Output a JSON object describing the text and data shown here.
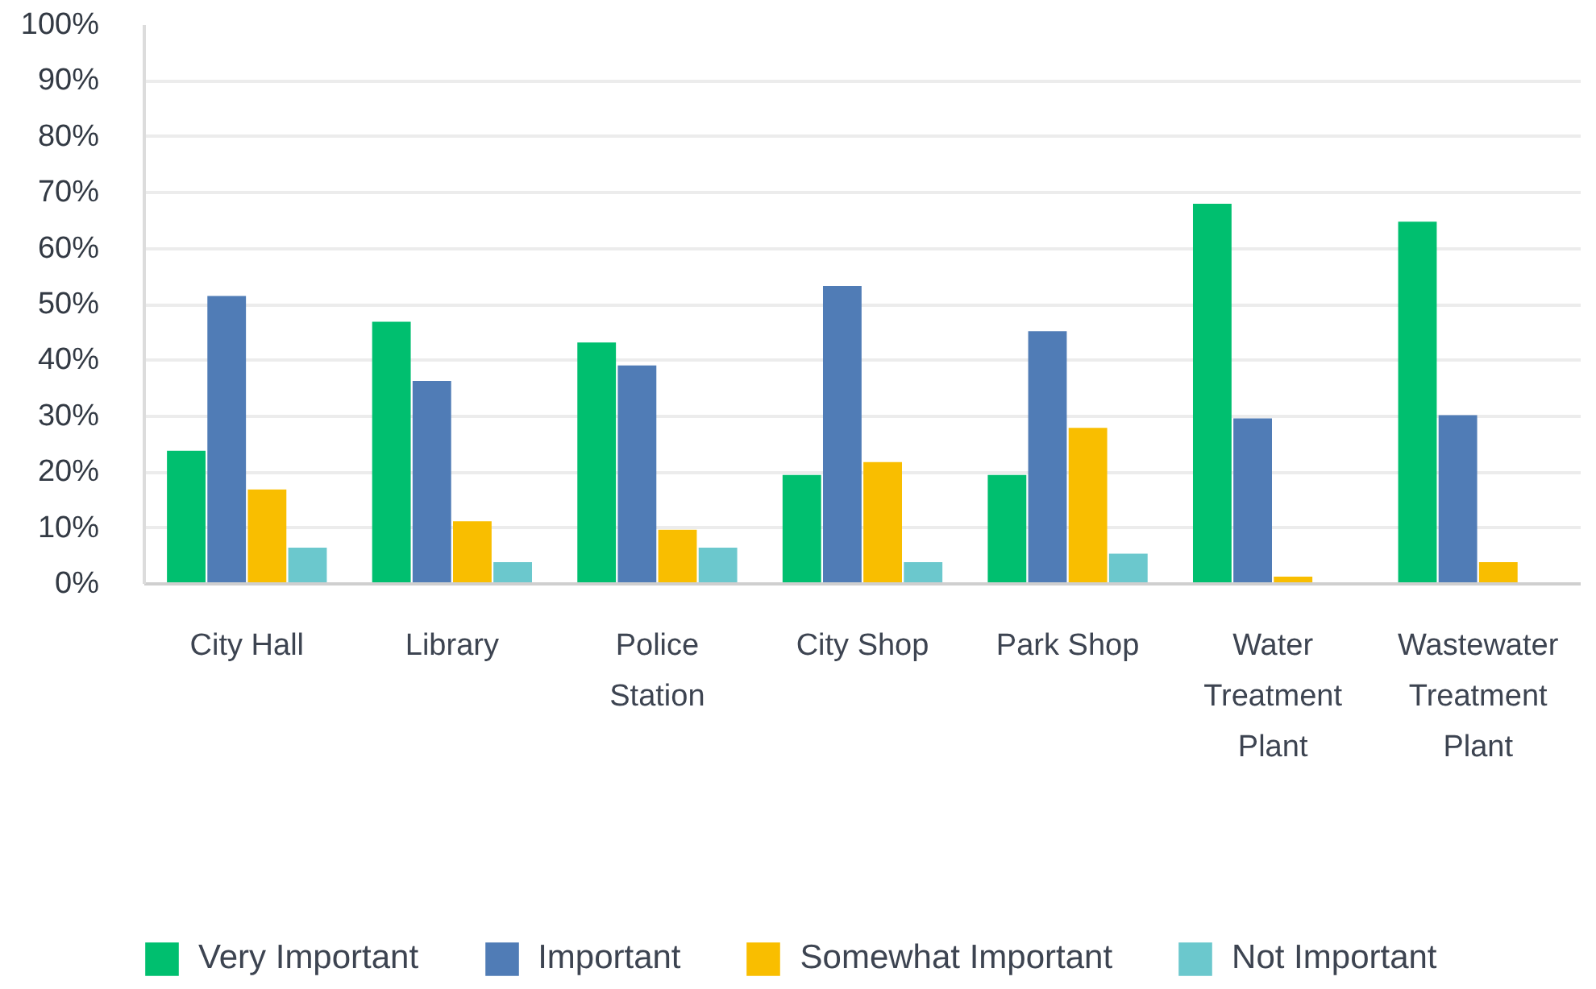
{
  "chart_data": {
    "type": "bar",
    "categories": [
      "City Hall",
      "Library",
      "Police Station",
      "City Shop",
      "Park Shop",
      "Water Treatment Plant",
      "Wastewater Treatment Plant"
    ],
    "series": [
      {
        "name": "Very Important",
        "color": "#00bf6f",
        "values": [
          23.8,
          46.9,
          43.2,
          19.5,
          19.5,
          68.0,
          64.8
        ]
      },
      {
        "name": "Important",
        "color": "#507cb6",
        "values": [
          51.5,
          36.3,
          39.1,
          53.3,
          45.2,
          29.6,
          30.2
        ]
      },
      {
        "name": "Somewhat Important",
        "color": "#f9be00",
        "values": [
          16.9,
          11.2,
          9.7,
          21.8,
          27.9,
          1.3,
          3.9
        ]
      },
      {
        "name": "Not Important",
        "color": "#6bc8cd",
        "values": [
          6.5,
          3.9,
          6.5,
          3.9,
          5.4,
          0,
          0
        ]
      }
    ],
    "ylim": [
      0,
      100
    ],
    "yticks": [
      {
        "value": 0,
        "label": "0%"
      },
      {
        "value": 10,
        "label": "10%"
      },
      {
        "value": 20,
        "label": "20%"
      },
      {
        "value": 30,
        "label": "30%"
      },
      {
        "value": 40,
        "label": "40%"
      },
      {
        "value": 50,
        "label": "50%"
      },
      {
        "value": 60,
        "label": "60%"
      },
      {
        "value": 70,
        "label": "70%"
      },
      {
        "value": 80,
        "label": "80%"
      },
      {
        "value": 90,
        "label": "90%"
      },
      {
        "value": 100,
        "label": "100%"
      }
    ],
    "grid": "y",
    "legend": "bottom"
  }
}
